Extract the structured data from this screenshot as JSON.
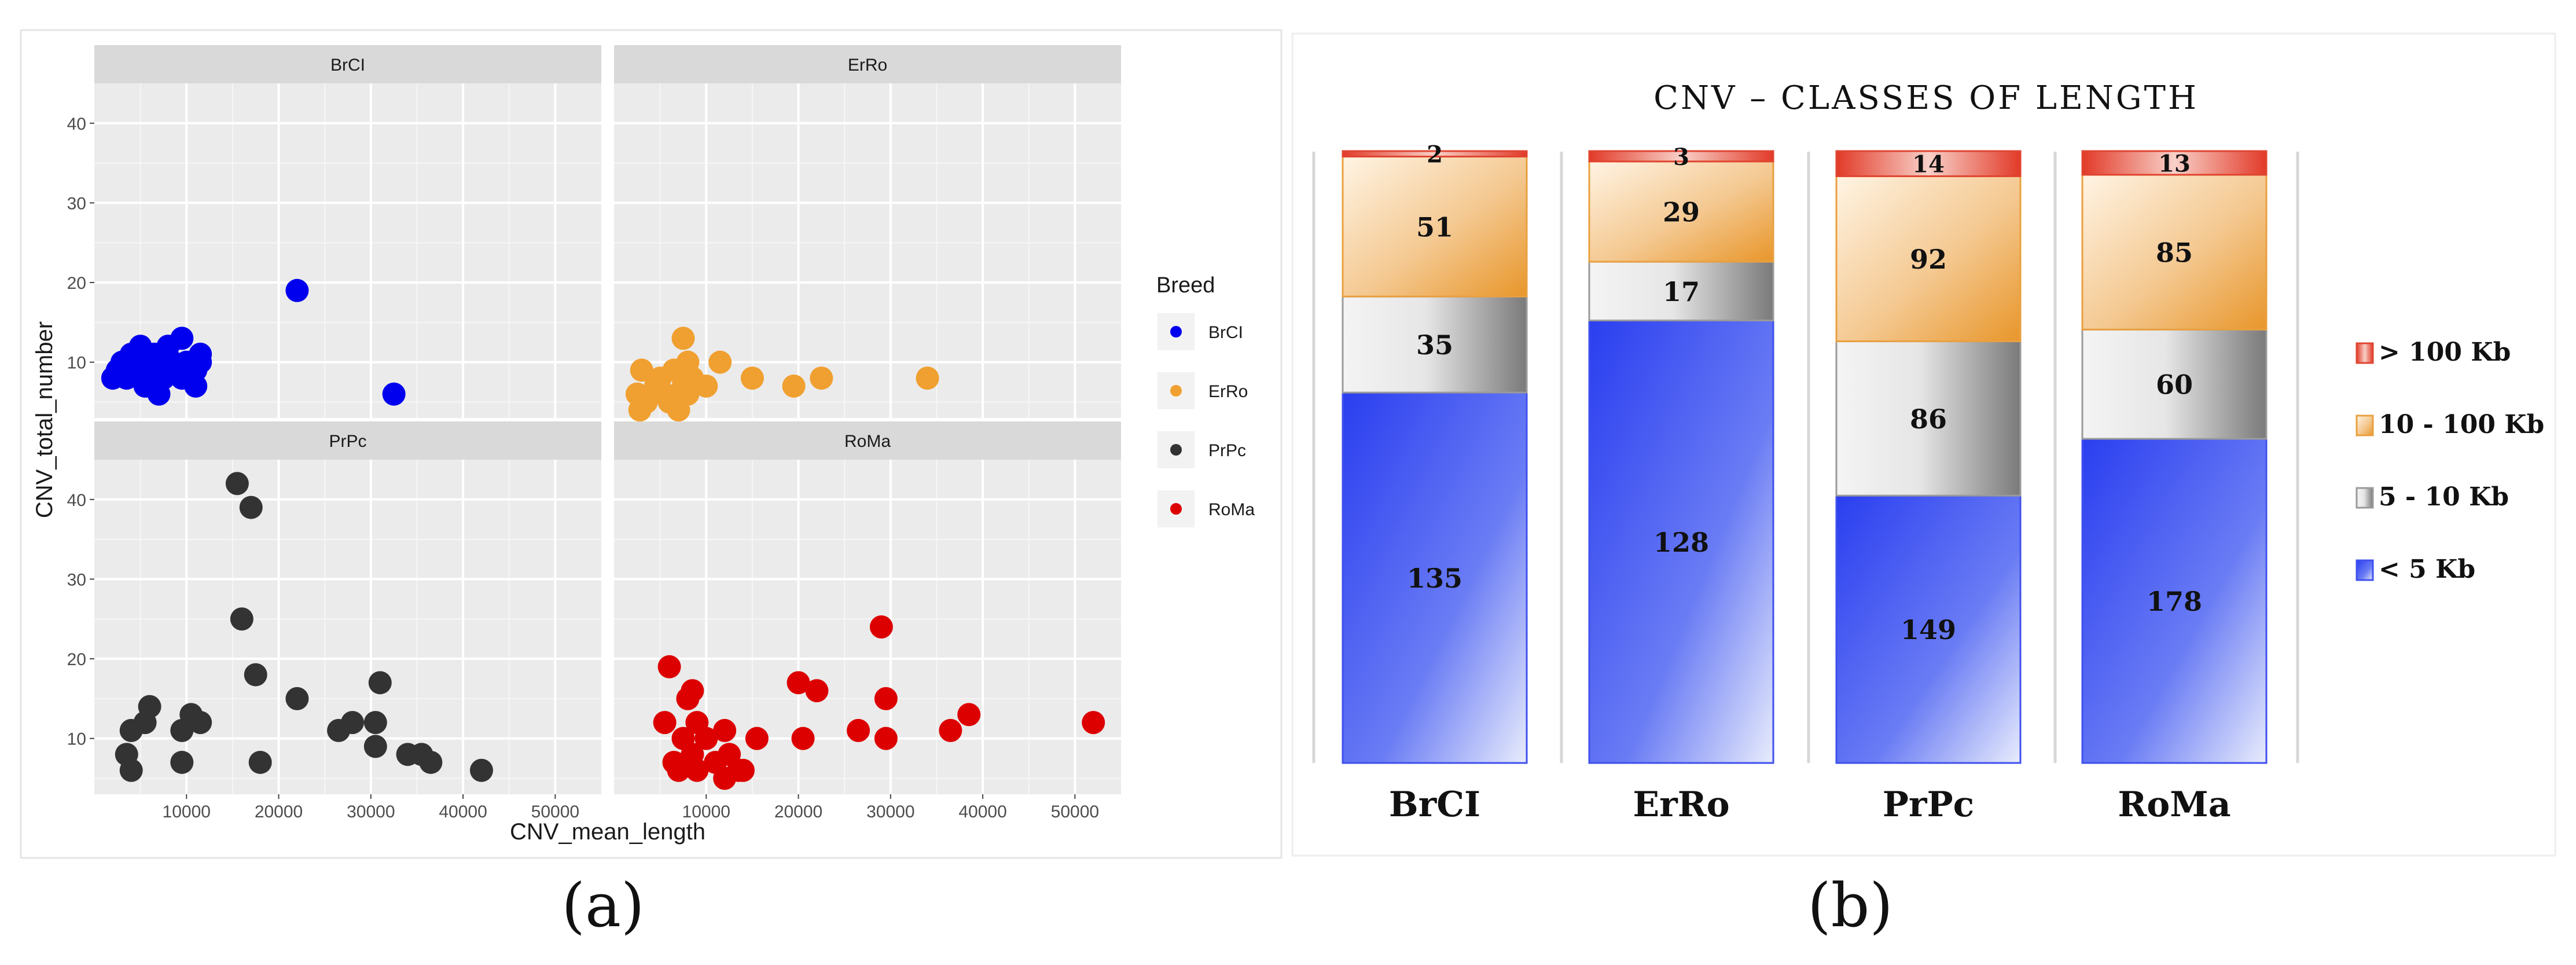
{
  "chart_data": [
    {
      "type": "scatter",
      "panel_label": "(a)",
      "xlabel": "CNV_mean_length",
      "ylabel": "CNV_total_number",
      "xlim": [
        0,
        55000
      ],
      "ylim": [
        3,
        45
      ],
      "x_ticks": [
        10000,
        20000,
        30000,
        40000,
        50000
      ],
      "y_ticks": [
        10,
        20,
        30,
        40
      ],
      "grid": true,
      "legend": {
        "title": "Breed",
        "position": "right"
      },
      "facets": [
        {
          "name": "BrCI",
          "color": "#0000ee",
          "points": [
            [
              2000,
              8
            ],
            [
              2500,
              9
            ],
            [
              3000,
              10
            ],
            [
              3500,
              8
            ],
            [
              4000,
              11
            ],
            [
              4500,
              9
            ],
            [
              5000,
              12
            ],
            [
              5500,
              10
            ],
            [
              5500,
              7
            ],
            [
              6000,
              8
            ],
            [
              6500,
              11
            ],
            [
              7000,
              9
            ],
            [
              7000,
              6
            ],
            [
              7500,
              8
            ],
            [
              8000,
              12
            ],
            [
              8500,
              10
            ],
            [
              9000,
              9
            ],
            [
              9500,
              13
            ],
            [
              9500,
              8
            ],
            [
              10000,
              10
            ],
            [
              11000,
              7
            ],
            [
              11000,
              9
            ],
            [
              11500,
              11
            ],
            [
              11500,
              10
            ],
            [
              22000,
              19
            ],
            [
              32500,
              6
            ]
          ]
        },
        {
          "name": "ErRo",
          "color": "#f0a030",
          "points": [
            [
              2500,
              6
            ],
            [
              2800,
              4
            ],
            [
              3000,
              9
            ],
            [
              3500,
              5
            ],
            [
              4500,
              7
            ],
            [
              5000,
              8
            ],
            [
              5500,
              6
            ],
            [
              6000,
              5
            ],
            [
              6500,
              9
            ],
            [
              7000,
              4
            ],
            [
              7500,
              13
            ],
            [
              7500,
              7
            ],
            [
              8000,
              10
            ],
            [
              8000,
              6
            ],
            [
              8500,
              8
            ],
            [
              10000,
              7
            ],
            [
              11500,
              10
            ],
            [
              15000,
              8
            ],
            [
              19500,
              7
            ],
            [
              22500,
              8
            ],
            [
              34000,
              8
            ]
          ]
        },
        {
          "name": "PrPc",
          "color": "#333333",
          "points": [
            [
              3500,
              8
            ],
            [
              4000,
              11
            ],
            [
              4000,
              6
            ],
            [
              5500,
              12
            ],
            [
              6000,
              14
            ],
            [
              9500,
              11
            ],
            [
              9500,
              7
            ],
            [
              10500,
              13
            ],
            [
              11500,
              12
            ],
            [
              15500,
              42
            ],
            [
              16000,
              25
            ],
            [
              17000,
              39
            ],
            [
              17500,
              18
            ],
            [
              18000,
              7
            ],
            [
              22000,
              15
            ],
            [
              26500,
              11
            ],
            [
              28000,
              12
            ],
            [
              30500,
              9
            ],
            [
              30500,
              12
            ],
            [
              31000,
              17
            ],
            [
              34000,
              8
            ],
            [
              35500,
              8
            ],
            [
              36500,
              7
            ],
            [
              42000,
              6
            ]
          ]
        },
        {
          "name": "RoMa",
          "color": "#dd0000",
          "points": [
            [
              5500,
              12
            ],
            [
              6000,
              19
            ],
            [
              6500,
              7
            ],
            [
              7000,
              6
            ],
            [
              7500,
              10
            ],
            [
              8000,
              15
            ],
            [
              8500,
              8
            ],
            [
              8500,
              16
            ],
            [
              9000,
              6
            ],
            [
              9000,
              12
            ],
            [
              10000,
              10
            ],
            [
              11000,
              7
            ],
            [
              12000,
              11
            ],
            [
              12000,
              5
            ],
            [
              12500,
              8
            ],
            [
              13500,
              6
            ],
            [
              14000,
              6
            ],
            [
              15500,
              10
            ],
            [
              20000,
              17
            ],
            [
              20500,
              10
            ],
            [
              22000,
              16
            ],
            [
              26500,
              11
            ],
            [
              29000,
              24
            ],
            [
              29500,
              15
            ],
            [
              29500,
              10
            ],
            [
              36500,
              11
            ],
            [
              38500,
              13
            ],
            [
              52000,
              12
            ]
          ]
        }
      ]
    },
    {
      "type": "bar",
      "stacked": true,
      "panel_label": "(b)",
      "title": "CNV –  CLASSES OF LENGTH",
      "categories": [
        "BrCI",
        "ErRo",
        "PrPc",
        "RoMa"
      ],
      "series": [
        {
          "name": "< 5 Kb",
          "color": "#2f45f0",
          "values": [
            135,
            128,
            149,
            178
          ]
        },
        {
          "name": "5 - 10 Kb",
          "color": "#9a9a9a",
          "values": [
            35,
            17,
            86,
            60
          ]
        },
        {
          "name": "10 - 100 Kb",
          "color": "#ec9a30",
          "values": [
            51,
            29,
            92,
            85
          ]
        },
        {
          "name": "> 100 Kb",
          "color": "#e04530",
          "values": [
            2,
            3,
            14,
            13
          ]
        }
      ],
      "legend": {
        "position": "right",
        "order": [
          "> 100 Kb",
          "10 - 100 Kb",
          "5 - 10 Kb",
          "< 5 Kb"
        ]
      }
    }
  ]
}
